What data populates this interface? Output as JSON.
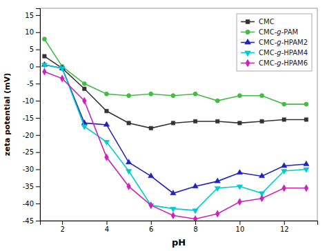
{
  "chart_data": {
    "type": "line",
    "xlabel": "pH",
    "ylabel": "zeta potential (mV)",
    "xlim": [
      1,
      13.5
    ],
    "ylim": [
      -45,
      17
    ],
    "xticks": [
      2,
      4,
      6,
      8,
      10,
      12
    ],
    "yticks": [
      15,
      10,
      5,
      0,
      -5,
      -10,
      -15,
      -20,
      -25,
      -30,
      -35,
      -40,
      -45
    ],
    "grid": false,
    "legend": "upper right",
    "series": [
      {
        "name": "CMC",
        "color": "#333333",
        "marker": "square",
        "x": [
          1.2,
          2,
          3,
          4,
          5,
          6,
          7,
          8,
          9,
          10,
          11,
          12,
          13
        ],
        "values": [
          3.0,
          -0.5,
          -6.5,
          -13.0,
          -16.5,
          -18.0,
          -16.5,
          -16.0,
          -16.0,
          -16.5,
          -16.0,
          -15.5,
          -15.5
        ]
      },
      {
        "name": "CMC-g-PAM",
        "color": "#44bb44",
        "marker": "circle",
        "x": [
          1.2,
          2,
          3,
          4,
          5,
          6,
          7,
          8,
          9,
          10,
          11,
          12,
          13
        ],
        "values": [
          8.0,
          0.0,
          -5.0,
          -8.0,
          -8.5,
          -8.0,
          -8.5,
          -8.0,
          -10.0,
          -8.5,
          -8.5,
          -11.0,
          -11.0
        ]
      },
      {
        "name": "CMC-g-HPAM2",
        "color": "#2222bb",
        "marker": "triangle-up",
        "x": [
          1.2,
          2,
          3,
          4,
          5,
          6,
          7,
          8,
          9,
          10,
          11,
          12,
          13
        ],
        "values": [
          0.5,
          -0.5,
          -16.5,
          -17.0,
          -28.0,
          -32.0,
          -37.0,
          -35.0,
          -33.5,
          -31.0,
          -32.0,
          -29.0,
          -28.5
        ]
      },
      {
        "name": "CMC-g-HPAM4",
        "color": "#00cccc",
        "marker": "triangle-down",
        "x": [
          1.2,
          2,
          3,
          4,
          5,
          6,
          7,
          8,
          9,
          10,
          11,
          12,
          13
        ],
        "values": [
          0.5,
          -0.5,
          -17.5,
          -22.0,
          -30.5,
          -40.5,
          -41.5,
          -42.0,
          -35.5,
          -35.0,
          -37.0,
          -30.5,
          -30.0
        ]
      },
      {
        "name": "CMC-g-HPAM6",
        "color": "#cc22bb",
        "marker": "diamond",
        "x": [
          1.2,
          2,
          3,
          4,
          5,
          6,
          7,
          8,
          9,
          10,
          11,
          12,
          13
        ],
        "values": [
          -1.5,
          -3.5,
          -10.0,
          -26.5,
          -35.0,
          -40.5,
          -43.5,
          -44.5,
          -43.0,
          -39.5,
          -38.5,
          -35.5,
          -35.5
        ]
      }
    ]
  }
}
